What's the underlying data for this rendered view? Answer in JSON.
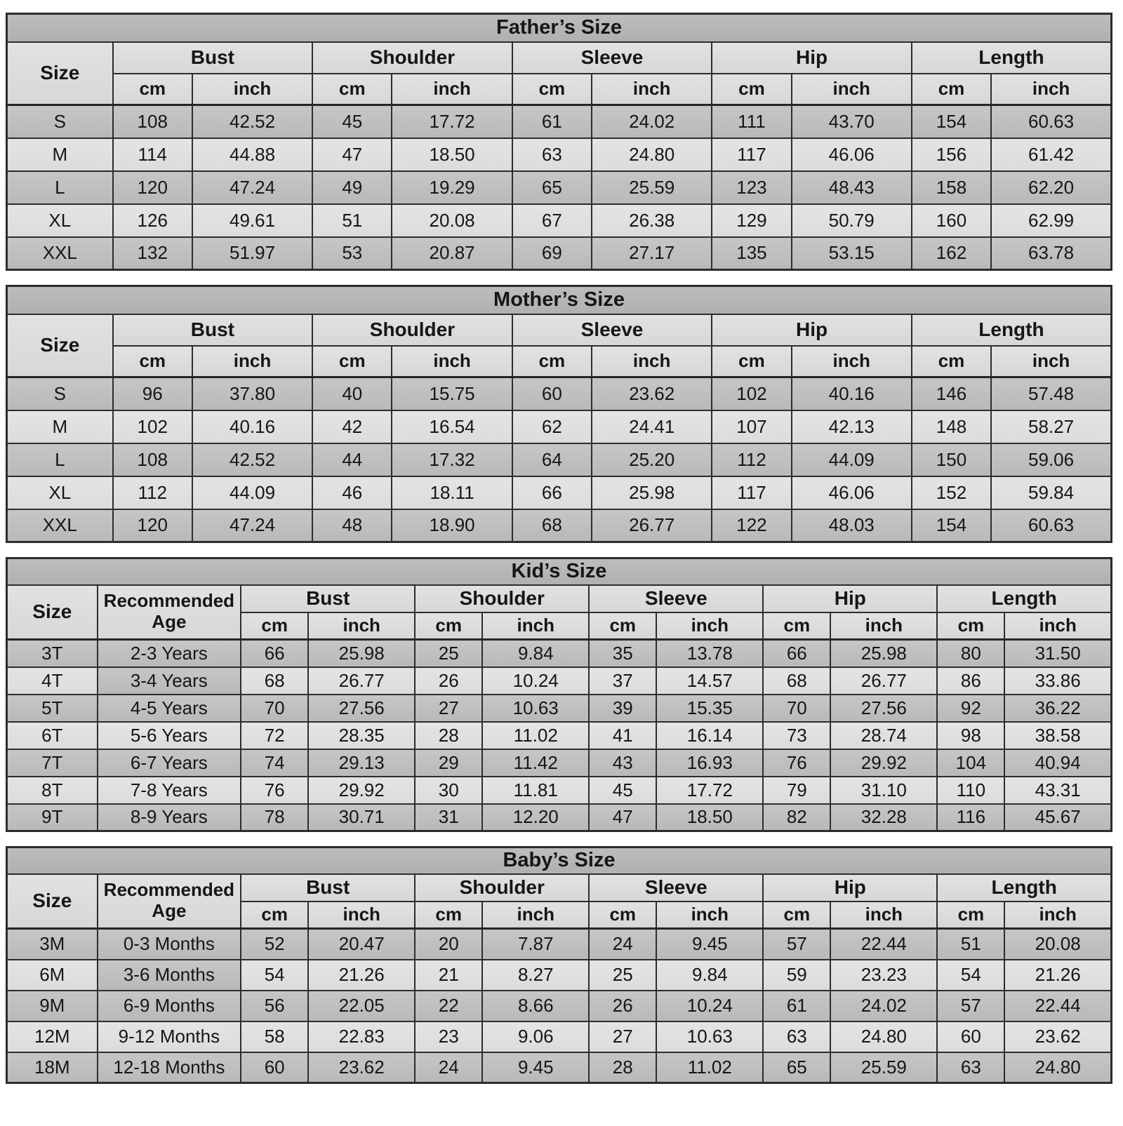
{
  "colors": {
    "border": "#2d2d2d",
    "title_row_bg": "#b6b6b6",
    "header_row_bg": "#dddddd",
    "row_dark_bg": "#bfbfbf",
    "row_light_bg": "#e0e0e0",
    "page_bg": "#ffffff",
    "text": "#161616"
  },
  "labels": {
    "size": "Size",
    "recommended_age": "Recommended Age"
  },
  "units": {
    "cm": "cm",
    "inch": "inch"
  },
  "tables": [
    {
      "id": "father",
      "title": "Father’s Size",
      "has_age": false,
      "groups": [
        "Bust",
        "Shoulder",
        "Sleeve",
        "Hip",
        "Length"
      ],
      "rows": [
        {
          "size": "S",
          "values": [
            "108",
            "42.52",
            "45",
            "17.72",
            "61",
            "24.02",
            "111",
            "43.70",
            "154",
            "60.63"
          ]
        },
        {
          "size": "M",
          "values": [
            "114",
            "44.88",
            "47",
            "18.50",
            "63",
            "24.80",
            "117",
            "46.06",
            "156",
            "61.42"
          ]
        },
        {
          "size": "L",
          "values": [
            "120",
            "47.24",
            "49",
            "19.29",
            "65",
            "25.59",
            "123",
            "48.43",
            "158",
            "62.20"
          ]
        },
        {
          "size": "XL",
          "values": [
            "126",
            "49.61",
            "51",
            "20.08",
            "67",
            "26.38",
            "129",
            "50.79",
            "160",
            "62.99"
          ]
        },
        {
          "size": "XXL",
          "values": [
            "132",
            "51.97",
            "53",
            "20.87",
            "69",
            "27.17",
            "135",
            "53.15",
            "162",
            "63.78"
          ]
        }
      ]
    },
    {
      "id": "mother",
      "title": "Mother’s Size",
      "has_age": false,
      "groups": [
        "Bust",
        "Shoulder",
        "Sleeve",
        "Hip",
        "Length"
      ],
      "rows": [
        {
          "size": "S",
          "values": [
            "96",
            "37.80",
            "40",
            "15.75",
            "60",
            "23.62",
            "102",
            "40.16",
            "146",
            "57.48"
          ]
        },
        {
          "size": "M",
          "values": [
            "102",
            "40.16",
            "42",
            "16.54",
            "62",
            "24.41",
            "107",
            "42.13",
            "148",
            "58.27"
          ]
        },
        {
          "size": "L",
          "values": [
            "108",
            "42.52",
            "44",
            "17.32",
            "64",
            "25.20",
            "112",
            "44.09",
            "150",
            "59.06"
          ]
        },
        {
          "size": "XL",
          "values": [
            "112",
            "44.09",
            "46",
            "18.11",
            "66",
            "25.98",
            "117",
            "46.06",
            "152",
            "59.84"
          ]
        },
        {
          "size": "XXL",
          "values": [
            "120",
            "47.24",
            "48",
            "18.90",
            "68",
            "26.77",
            "122",
            "48.03",
            "154",
            "60.63"
          ]
        }
      ]
    },
    {
      "id": "kid",
      "title": "Kid’s Size",
      "has_age": true,
      "groups": [
        "Bust",
        "Shoulder",
        "Sleeve",
        "Hip",
        "Length"
      ],
      "rows": [
        {
          "size": "3T",
          "age": "2-3 Years",
          "values": [
            "66",
            "25.98",
            "25",
            "9.84",
            "35",
            "13.78",
            "66",
            "25.98",
            "80",
            "31.50"
          ]
        },
        {
          "size": "4T",
          "age": "3-4 Years",
          "age_shaded": true,
          "values": [
            "68",
            "26.77",
            "26",
            "10.24",
            "37",
            "14.57",
            "68",
            "26.77",
            "86",
            "33.86"
          ]
        },
        {
          "size": "5T",
          "age": "4-5 Years",
          "values": [
            "70",
            "27.56",
            "27",
            "10.63",
            "39",
            "15.35",
            "70",
            "27.56",
            "92",
            "36.22"
          ]
        },
        {
          "size": "6T",
          "age": "5-6 Years",
          "values": [
            "72",
            "28.35",
            "28",
            "11.02",
            "41",
            "16.14",
            "73",
            "28.74",
            "98",
            "38.58"
          ]
        },
        {
          "size": "7T",
          "age": "6-7 Years",
          "values": [
            "74",
            "29.13",
            "29",
            "11.42",
            "43",
            "16.93",
            "76",
            "29.92",
            "104",
            "40.94"
          ]
        },
        {
          "size": "8T",
          "age": "7-8 Years",
          "values": [
            "76",
            "29.92",
            "30",
            "11.81",
            "45",
            "17.72",
            "79",
            "31.10",
            "110",
            "43.31"
          ]
        },
        {
          "size": "9T",
          "age": "8-9 Years",
          "values": [
            "78",
            "30.71",
            "31",
            "12.20",
            "47",
            "18.50",
            "82",
            "32.28",
            "116",
            "45.67"
          ]
        }
      ]
    },
    {
      "id": "baby",
      "title": "Baby’s Size",
      "has_age": true,
      "groups": [
        "Bust",
        "Shoulder",
        "Sleeve",
        "Hip",
        "Length"
      ],
      "rows": [
        {
          "size": "3M",
          "age": "0-3 Months",
          "values": [
            "52",
            "20.47",
            "20",
            "7.87",
            "24",
            "9.45",
            "57",
            "22.44",
            "51",
            "20.08"
          ]
        },
        {
          "size": "6M",
          "age": "3-6 Months",
          "age_shaded": true,
          "values": [
            "54",
            "21.26",
            "21",
            "8.27",
            "25",
            "9.84",
            "59",
            "23.23",
            "54",
            "21.26"
          ]
        },
        {
          "size": "9M",
          "age": "6-9 Months",
          "values": [
            "56",
            "22.05",
            "22",
            "8.66",
            "26",
            "10.24",
            "61",
            "24.02",
            "57",
            "22.44"
          ]
        },
        {
          "size": "12M",
          "age": "9-12 Months",
          "values": [
            "58",
            "22.83",
            "23",
            "9.06",
            "27",
            "10.63",
            "63",
            "24.80",
            "60",
            "23.62"
          ]
        },
        {
          "size": "18M",
          "age": "12-18 Months",
          "values": [
            "60",
            "23.62",
            "24",
            "9.45",
            "28",
            "11.02",
            "65",
            "25.59",
            "63",
            "24.80"
          ]
        }
      ]
    }
  ]
}
